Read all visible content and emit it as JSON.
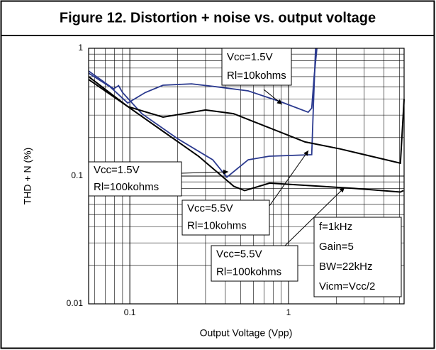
{
  "chart_data": {
    "type": "line",
    "title": "Figure 12. Distortion + noise vs. output voltage",
    "xlabel": "Output Voltage (Vpp)",
    "ylabel": "THD + N (%)",
    "xscale": "log",
    "yscale": "log",
    "grid": true,
    "xlim": [
      0.055,
      5.35
    ],
    "ylim": [
      0.01,
      1
    ],
    "xticks": [
      0.1,
      1
    ],
    "yticks": [
      0.01,
      0.1,
      1
    ],
    "series": [
      {
        "color": "#2b3a8f",
        "x": [
          0.055,
          0.075,
          0.097,
          0.125,
          0.162,
          0.245,
          0.35,
          0.557,
          0.9,
          1.33,
          1.4,
          1.45,
          1.51
        ],
        "values": [
          0.639,
          0.5,
          0.373,
          0.45,
          0.514,
          0.527,
          0.5,
          0.464,
          0.38,
          0.316,
          0.34,
          0.6,
          1.0
        ]
      },
      {
        "color": "#2b3a8f",
        "x": [
          0.055,
          0.079,
          0.085,
          0.09,
          0.119,
          0.199,
          0.333,
          0.409,
          0.557,
          0.758,
          1.4,
          1.44,
          1.48
        ],
        "values": [
          0.664,
          0.482,
          0.51,
          0.45,
          0.308,
          0.197,
          0.134,
          0.098,
          0.134,
          0.143,
          0.147,
          0.4,
          1.0
        ]
      },
      {
        "color": "#000000",
        "x": [
          0.055,
          0.097,
          0.162,
          0.3,
          0.45,
          0.76,
          1.27,
          2.12,
          5.07,
          5.35
        ],
        "values": [
          0.6,
          0.35,
          0.289,
          0.329,
          0.308,
          0.238,
          0.185,
          0.163,
          0.126,
          0.4
        ]
      },
      {
        "color": "#000000",
        "x": [
          0.055,
          0.097,
          0.162,
          0.271,
          0.453,
          0.53,
          0.758,
          1.4,
          2.6,
          5.07,
          5.3
        ],
        "values": [
          0.57,
          0.35,
          0.224,
          0.143,
          0.083,
          0.077,
          0.088,
          0.084,
          0.08,
          0.075,
          0.077
        ]
      }
    ],
    "annotations": [
      {
        "lines": [
          "Vcc=1.5V",
          "Rl=10kohms"
        ]
      },
      {
        "lines": [
          "Vcc=1.5V",
          "Rl=100kohms"
        ]
      },
      {
        "lines": [
          "Vcc=5.5V",
          "Rl=10kohms"
        ]
      },
      {
        "lines": [
          "Vcc=5.5V",
          "Rl=100kohms"
        ]
      },
      {
        "lines": [
          "f=1kHz",
          "Gain=5",
          "BW=22kHz",
          "Vicm=Vcc/2"
        ]
      }
    ]
  }
}
